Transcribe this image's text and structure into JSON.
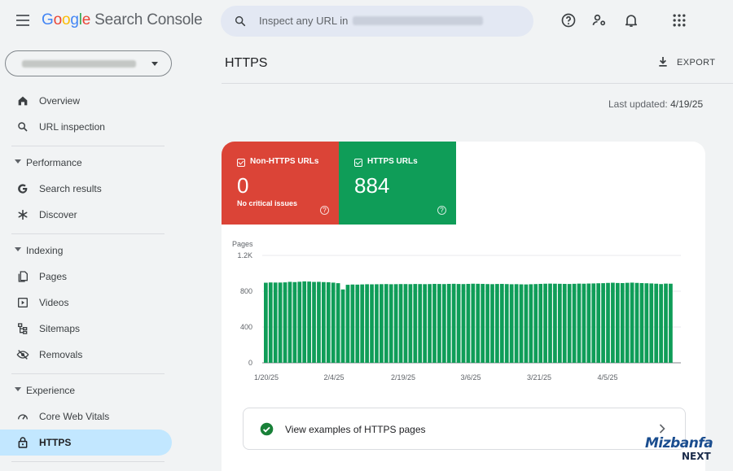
{
  "app": {
    "logo_letters": [
      "G",
      "o",
      "o",
      "g",
      "l",
      "e"
    ],
    "product": "Search Console"
  },
  "search": {
    "placeholder": "Inspect any URL in"
  },
  "sidebar": {
    "items_top": [
      {
        "label": "Overview",
        "icon": "home-icon"
      },
      {
        "label": "URL inspection",
        "icon": "search-icon"
      }
    ],
    "sections": [
      {
        "label": "Performance",
        "items": [
          {
            "label": "Search results",
            "icon": "google-g-icon"
          },
          {
            "label": "Discover",
            "icon": "asterisk-icon"
          }
        ]
      },
      {
        "label": "Indexing",
        "items": [
          {
            "label": "Pages",
            "icon": "pages-icon"
          },
          {
            "label": "Videos",
            "icon": "video-icon"
          },
          {
            "label": "Sitemaps",
            "icon": "sitemap-icon"
          },
          {
            "label": "Removals",
            "icon": "eye-off-icon"
          }
        ]
      },
      {
        "label": "Experience",
        "items": [
          {
            "label": "Core Web Vitals",
            "icon": "gauge-icon"
          },
          {
            "label": "HTTPS",
            "icon": "lock-icon",
            "active": true
          }
        ]
      }
    ]
  },
  "main": {
    "title": "HTTPS",
    "export_label": "EXPORT",
    "last_updated_label": "Last updated:",
    "last_updated_value": "4/19/25",
    "tiles": [
      {
        "label": "Non-HTTPS URLs",
        "value": "0",
        "sub": "No critical issues",
        "color": "#db4437"
      },
      {
        "label": "HTTPS URLs",
        "value": "884",
        "sub": "",
        "color": "#0f9d58"
      }
    ],
    "examples_label": "View examples of HTTPS pages"
  },
  "chart_data": {
    "type": "bar",
    "ylabel": "Pages",
    "y_ticks": [
      "0",
      "400",
      "800",
      "1.2K"
    ],
    "ylim": [
      0,
      1200
    ],
    "x_tick_labels": [
      "1/20/25",
      "2/4/25",
      "2/19/25",
      "3/6/25",
      "3/21/25",
      "4/5/25"
    ],
    "color": "#0f9d58",
    "grid": true,
    "values": [
      895,
      898,
      897,
      897,
      899,
      905,
      902,
      906,
      910,
      908,
      904,
      905,
      902,
      900,
      896,
      890,
      820,
      872,
      875,
      874,
      876,
      878,
      877,
      878,
      879,
      880,
      878,
      879,
      880,
      880,
      879,
      881,
      880,
      879,
      880,
      882,
      881,
      880,
      882,
      883,
      881,
      880,
      882,
      884,
      883,
      882,
      880,
      879,
      881,
      882,
      880,
      878,
      879,
      877,
      876,
      878,
      880,
      882,
      884,
      885,
      884,
      883,
      882,
      881,
      883,
      885,
      884,
      886,
      887,
      889,
      890,
      893,
      895,
      892,
      891,
      894,
      896,
      893,
      891,
      889,
      887,
      884,
      880,
      885,
      884
    ]
  },
  "watermark": {
    "line1": "Mizbanfa",
    "line2": "NEXT"
  }
}
